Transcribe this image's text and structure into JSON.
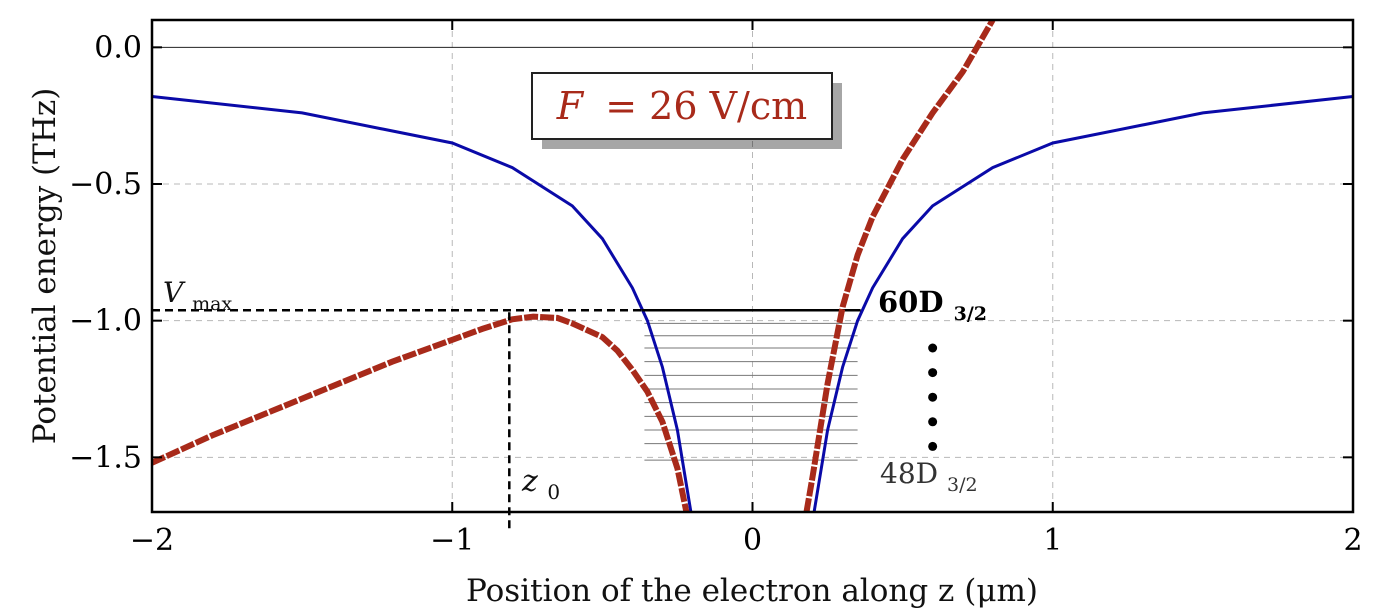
{
  "chart_data": {
    "type": "line",
    "title": "",
    "xlabel": "Position of the electron along z (μm)",
    "ylabel": "Potential energy (THz)",
    "xlim": [
      -2,
      2
    ],
    "ylim": [
      -1.7,
      0.1
    ],
    "x_ticks": [
      "−2",
      "−1",
      "0",
      "1",
      "2"
    ],
    "y_ticks": [
      "0.0",
      "−0.5",
      "−1.0",
      "−1.5"
    ],
    "grid": true,
    "annotation_box": {
      "prefix": "F",
      "equals": "= 26 V/cm"
    },
    "series": [
      {
        "style": "solid blue",
        "color": "#0a0aa8",
        "points_left": [
          [
            -2,
            -0.18
          ],
          [
            -1.5,
            -0.24
          ],
          [
            -1,
            -0.35
          ],
          [
            -0.8,
            -0.44
          ],
          [
            -0.6,
            -0.58
          ],
          [
            -0.5,
            -0.7
          ],
          [
            -0.4,
            -0.88
          ],
          [
            -0.35,
            -1.0
          ],
          [
            -0.3,
            -1.17
          ],
          [
            -0.25,
            -1.4
          ],
          [
            -0.22,
            -1.6
          ],
          [
            -0.205,
            -1.7
          ]
        ],
        "points_right": [
          [
            0.205,
            -1.7
          ],
          [
            0.22,
            -1.6
          ],
          [
            0.25,
            -1.4
          ],
          [
            0.3,
            -1.17
          ],
          [
            0.35,
            -1.0
          ],
          [
            0.4,
            -0.88
          ],
          [
            0.5,
            -0.7
          ],
          [
            0.6,
            -0.58
          ],
          [
            0.8,
            -0.44
          ],
          [
            1,
            -0.35
          ],
          [
            1.5,
            -0.24
          ],
          [
            2,
            -0.18
          ]
        ]
      },
      {
        "style": "thick dashed red",
        "color": "#a82a1a",
        "points_left": [
          [
            -2,
            -1.52
          ],
          [
            -1.8,
            -1.42
          ],
          [
            -1.6,
            -1.33
          ],
          [
            -1.4,
            -1.24
          ],
          [
            -1.2,
            -1.15
          ],
          [
            -1.0,
            -1.07
          ],
          [
            -0.9,
            -1.03
          ],
          [
            -0.8,
            -0.995
          ],
          [
            -0.73,
            -0.985
          ],
          [
            -0.65,
            -0.99
          ],
          [
            -0.6,
            -1.01
          ],
          [
            -0.5,
            -1.06
          ],
          [
            -0.45,
            -1.11
          ],
          [
            -0.4,
            -1.18
          ],
          [
            -0.35,
            -1.26
          ],
          [
            -0.3,
            -1.37
          ],
          [
            -0.25,
            -1.54
          ],
          [
            -0.22,
            -1.7
          ]
        ],
        "points_right": [
          [
            0.18,
            -1.7
          ],
          [
            0.2,
            -1.57
          ],
          [
            0.25,
            -1.23
          ],
          [
            0.3,
            -0.95
          ],
          [
            0.35,
            -0.76
          ],
          [
            0.4,
            -0.62
          ],
          [
            0.5,
            -0.41
          ],
          [
            0.6,
            -0.24
          ],
          [
            0.7,
            -0.09
          ],
          [
            0.8,
            0.1
          ]
        ]
      }
    ],
    "vmax": {
      "value": -0.962,
      "label_main": "V",
      "label_sub": "max",
      "x_start": -2,
      "x_end": -0.8
    },
    "z0": {
      "value": -0.81,
      "label_main": "z",
      "label_sub": "0"
    },
    "levels": {
      "top": {
        "value": -0.962,
        "x_start": -0.37,
        "x_end": 0.36,
        "label_main": "60D",
        "label_sub": "3/2"
      },
      "inner": [
        -1.01,
        -1.055,
        -1.1,
        -1.15,
        -1.2,
        -1.25,
        -1.3,
        -1.35,
        -1.4,
        -1.45,
        -1.51
      ],
      "bottom_label_main": "48D",
      "bottom_label_sub": "3/2"
    },
    "dots": {
      "x": 0.6,
      "values": [
        -1.1,
        -1.19,
        -1.28,
        -1.37,
        -1.46
      ]
    }
  }
}
